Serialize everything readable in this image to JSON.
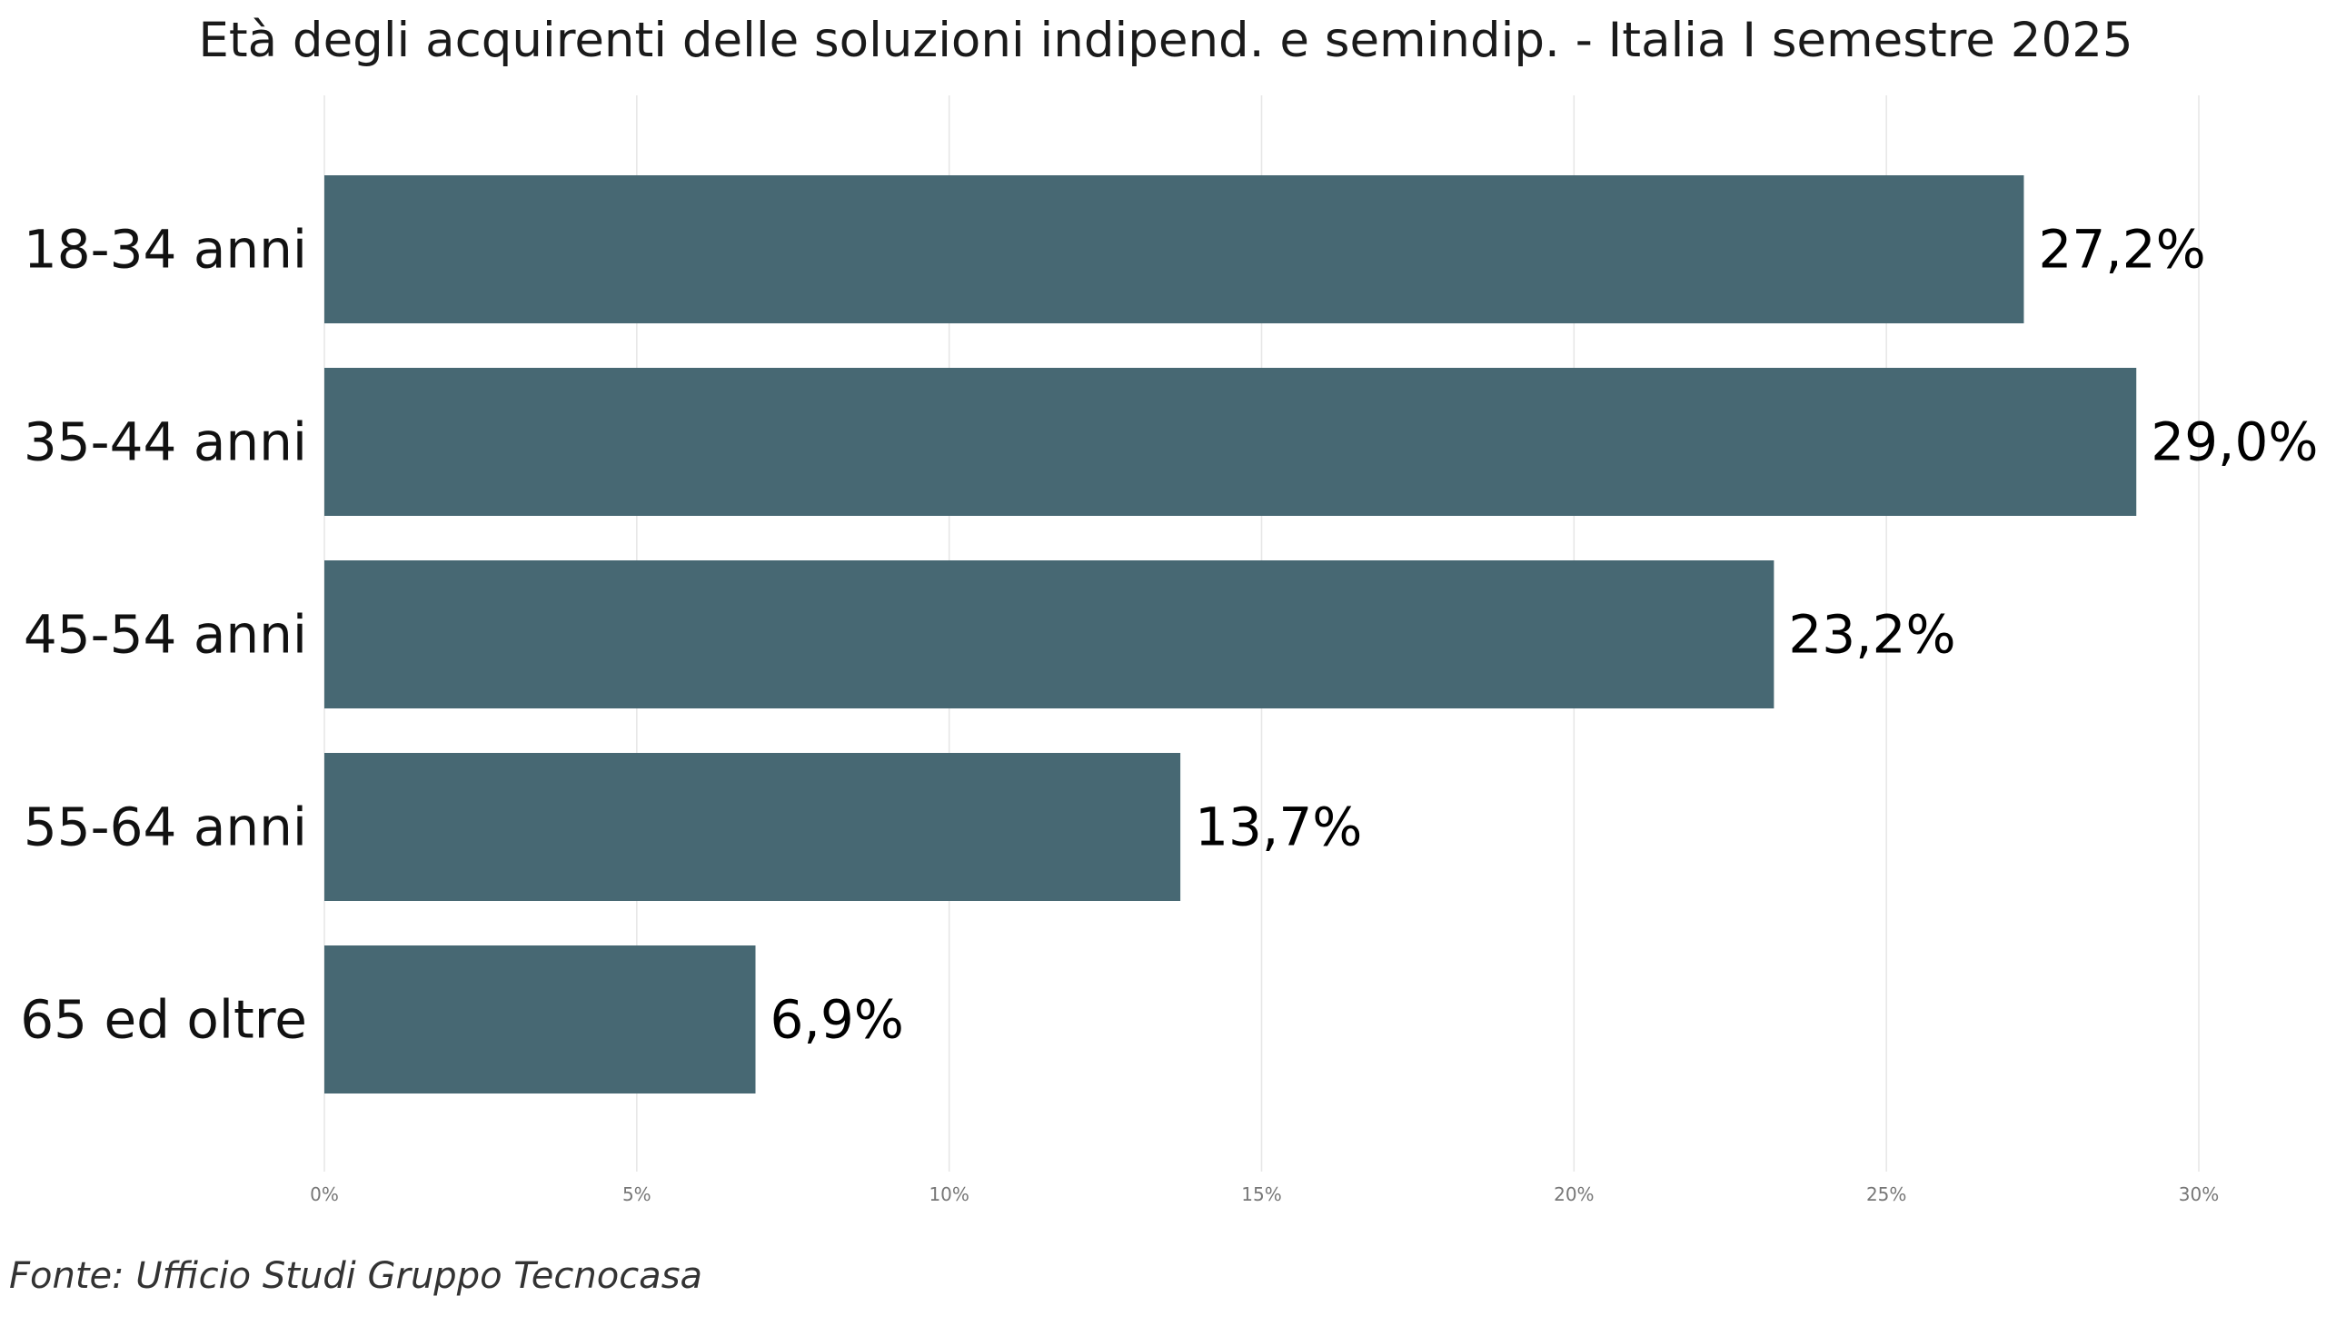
{
  "chart_data": {
    "type": "bar",
    "orientation": "horizontal",
    "title": "Età degli acquirenti delle soluzioni indipend. e semindip. - Italia I semestre 2025",
    "categories": [
      "18-34 anni",
      "35-44 anni",
      "45-54 anni",
      "55-64 anni",
      "65 ed oltre"
    ],
    "values": [
      27.2,
      29.0,
      23.2,
      13.7,
      6.9
    ],
    "value_labels": [
      "27,2%",
      "29,0%",
      "23,2%",
      "13,7%",
      "6,9%"
    ],
    "xlim": [
      0,
      30
    ],
    "x_ticks": [
      0,
      5,
      10,
      15,
      20,
      25,
      30
    ],
    "x_tick_labels": [
      "0%",
      "5%",
      "10%",
      "15%",
      "20%",
      "25%",
      "30%"
    ],
    "xlabel": "",
    "ylabel": "",
    "grid": "vertical",
    "legend": "none",
    "bar_color": "#476873"
  },
  "source": "Fonte: Ufficio Studi Gruppo Tecnocasa"
}
